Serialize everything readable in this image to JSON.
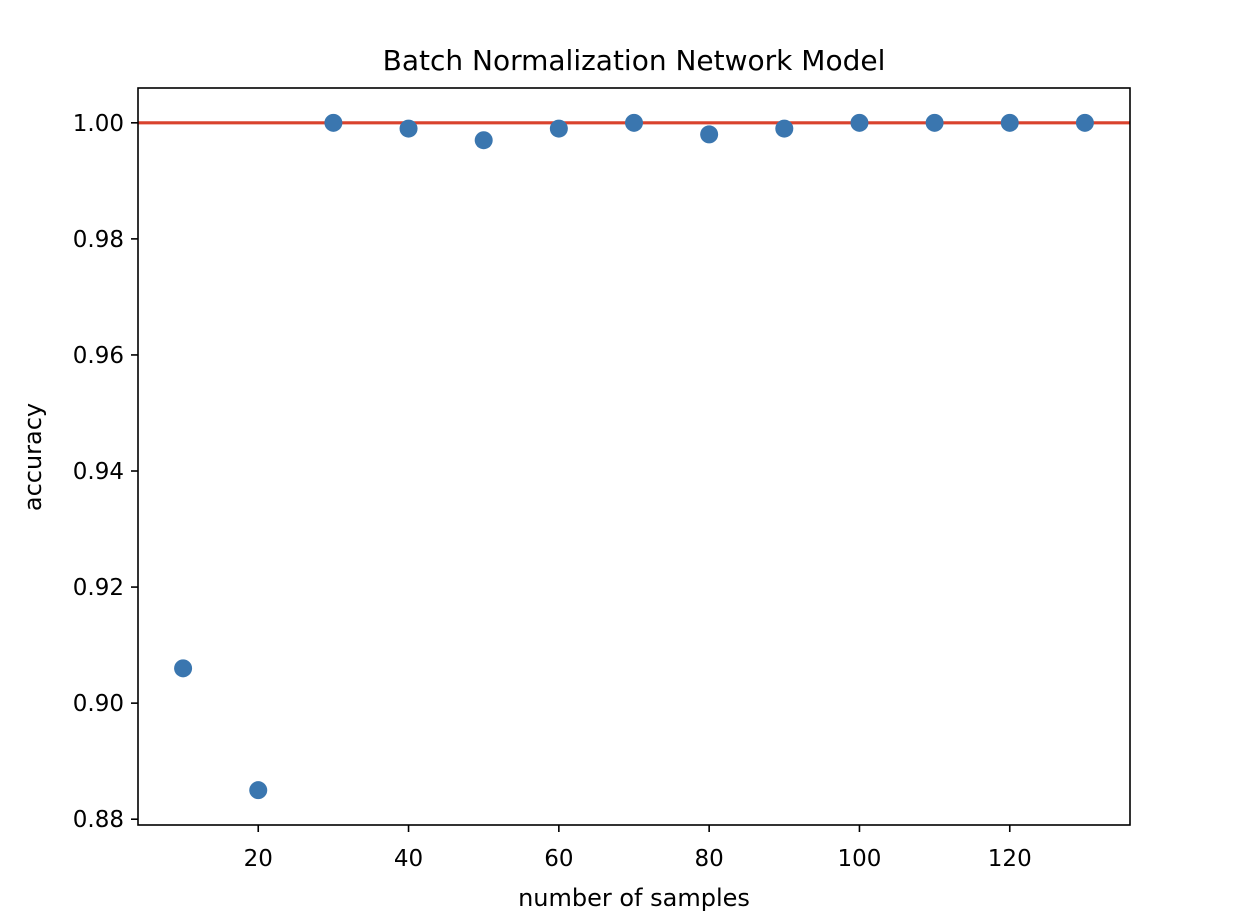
{
  "chart_data": {
    "type": "scatter",
    "title": "Batch Normalization Network Model",
    "xlabel": "number of samples",
    "ylabel": "accuracy",
    "x": [
      10,
      20,
      30,
      40,
      50,
      60,
      70,
      80,
      90,
      100,
      110,
      120,
      130
    ],
    "y": [
      0.906,
      0.885,
      1.0,
      0.999,
      0.997,
      0.999,
      1.0,
      0.998,
      0.999,
      1.0,
      1.0,
      1.0,
      1.0
    ],
    "xlim": [
      4,
      136
    ],
    "ylim": [
      0.879,
      1.006
    ],
    "xticks": [
      20,
      40,
      60,
      80,
      100,
      120
    ],
    "xtick_labels": [
      "20",
      "40",
      "60",
      "80",
      "100",
      "120"
    ],
    "yticks": [
      0.88,
      0.9,
      0.92,
      0.94,
      0.96,
      0.98,
      1.0
    ],
    "ytick_labels": [
      "0.88",
      "0.90",
      "0.92",
      "0.94",
      "0.96",
      "0.98",
      "1.00"
    ],
    "reference_line": {
      "orientation": "horizontal",
      "y": 1.0,
      "color": "#d9422d"
    },
    "marker_color": "#3a76af",
    "grid": false,
    "legend": false
  }
}
